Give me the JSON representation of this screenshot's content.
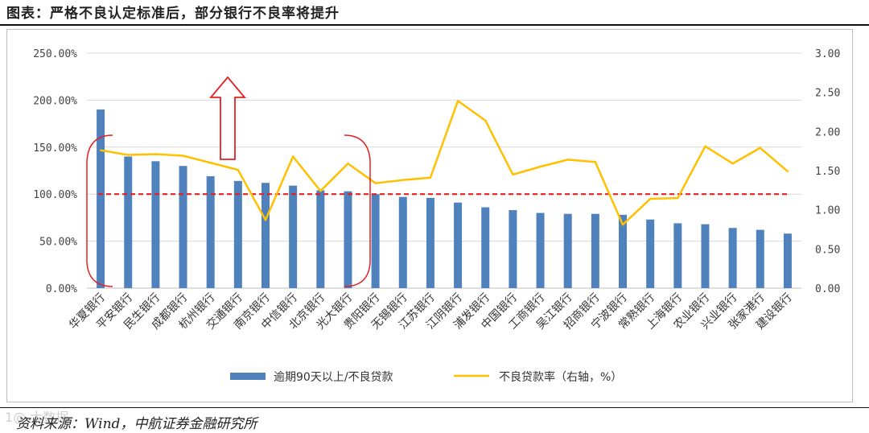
{
  "header": {
    "title": "图表：严格不良认定标准后，部分银行不良率将提升"
  },
  "footer": {
    "source": "资料来源：Wind，中航证券金融研究所",
    "watermark": "1@ 大数据"
  },
  "colors": {
    "bar": "#4f81bd",
    "line": "#ffc000",
    "threshold": "#e32124",
    "annotation": "#e32124"
  },
  "chart_data": {
    "type": "bar",
    "categories": [
      "华夏银行",
      "平安银行",
      "民生银行",
      "成都银行",
      "杭州银行",
      "交通银行",
      "南京银行",
      "中信银行",
      "北京银行",
      "光大银行",
      "贵阳银行",
      "无锡银行",
      "江苏银行",
      "江阴银行",
      "浦发银行",
      "中国银行",
      "工商银行",
      "吴江银行",
      "招商银行",
      "宁波银行",
      "常熟银行",
      "上海银行",
      "农业银行",
      "兴业银行",
      "张家港行",
      "建设银行"
    ],
    "y_left": {
      "ticks": [
        "0.00%",
        "50.00%",
        "100.00%",
        "150.00%",
        "200.00%",
        "250.00%"
      ],
      "ylim": [
        0,
        250
      ]
    },
    "y_right": {
      "ticks": [
        "0.00",
        "0.50",
        "1.00",
        "1.50",
        "2.00",
        "2.50",
        "3.00"
      ],
      "ylim": [
        0,
        3
      ]
    },
    "series": [
      {
        "name": "逾期90天以上/不良贷款",
        "type": "bar",
        "axis": "left",
        "values": [
          190,
          140,
          135,
          130,
          119,
          114,
          112,
          109,
          104,
          103,
          100,
          97,
          96,
          91,
          86,
          83,
          80,
          79,
          79,
          78,
          73,
          69,
          68,
          64,
          62,
          58
        ]
      },
      {
        "name": "不良贷款率（右轴，%）",
        "type": "line",
        "axis": "right",
        "values": [
          1.76,
          1.7,
          1.71,
          1.69,
          1.6,
          1.51,
          0.87,
          1.68,
          1.24,
          1.59,
          1.34,
          1.38,
          1.41,
          2.39,
          2.14,
          1.45,
          1.55,
          1.64,
          1.61,
          0.81,
          1.14,
          1.15,
          1.81,
          1.59,
          1.79,
          1.49
        ]
      }
    ],
    "reference_line": {
      "axis": "left",
      "value": 100
    },
    "legend_position": "bottom",
    "grid": true
  }
}
